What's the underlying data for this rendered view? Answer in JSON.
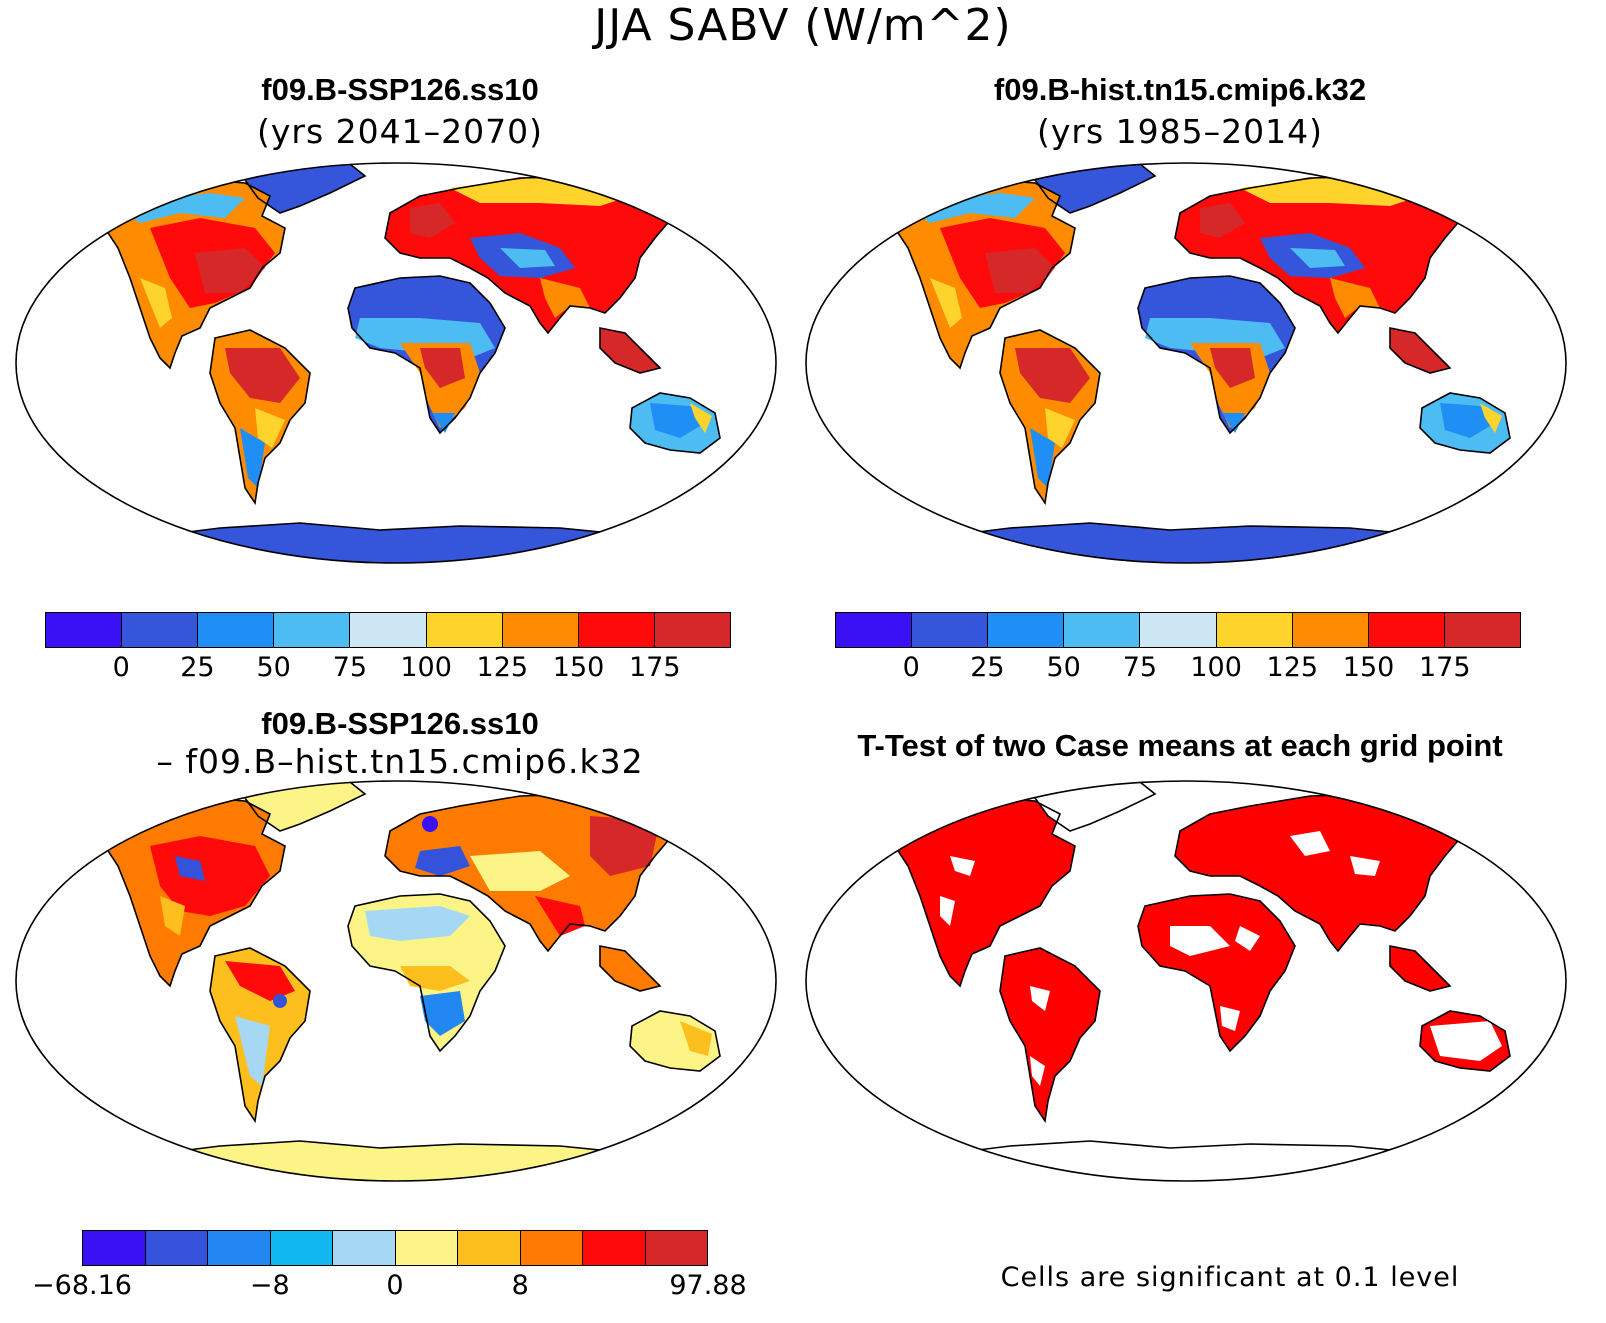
{
  "title": "JJA SABV (W/m^2)",
  "panels": {
    "top_left": {
      "title": "f09.B-SSP126.ss10",
      "subtitle": "(yrs 2041–2070)",
      "map_kind": "mean"
    },
    "top_right": {
      "title": "f09.B-hist.tn15.cmip6.k32",
      "subtitle": "(yrs 1985–2014)",
      "map_kind": "mean"
    },
    "bottom_left": {
      "title": "f09.B-SSP126.ss10",
      "subtitle": "– f09.B–hist.tn15.cmip6.k32",
      "map_kind": "difference"
    },
    "bottom_right": {
      "title": "T-Test of two Case means at each grid point",
      "note": "Cells are significant at 0.1 level",
      "map_kind": "significance",
      "significant_color": "#ff0000"
    }
  },
  "colorbars": {
    "mean": {
      "colors": [
        "#3a10f5",
        "#3556db",
        "#1f8ff5",
        "#4cbcf2",
        "#cde7f5",
        "#fdd32c",
        "#ff8c00",
        "#ff0a0a",
        "#d62828"
      ],
      "labels": [
        "0",
        "25",
        "50",
        "75",
        "100",
        "125",
        "150",
        "175"
      ]
    },
    "difference": {
      "colors": [
        "#3a10f5",
        "#3552db",
        "#2287f0",
        "#12b8f2",
        "#a6d8f3",
        "#fdf488",
        "#fdbf1e",
        "#ff7a00",
        "#ff0a0a",
        "#d62828"
      ],
      "labels": [
        "−68.16",
        "−8",
        "0",
        "8",
        "97.88"
      ]
    }
  },
  "land_colors": {
    "ocean": "#ffffff",
    "coast": "#000000"
  }
}
